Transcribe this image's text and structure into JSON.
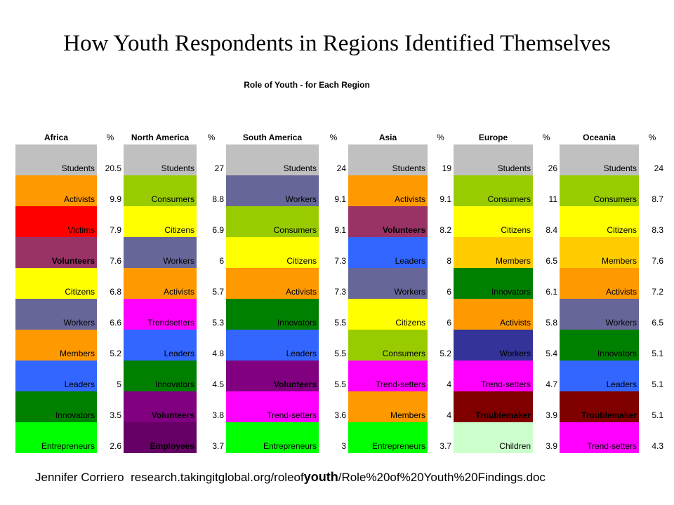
{
  "title": "How Youth Respondents in Regions Identified Themselves",
  "subtitle": "Role of Youth - for Each Region",
  "footer": {
    "author": "Jennifer Corriero",
    "url_pre": "research.takingitglobal.org/roleof",
    "url_bold": "youth",
    "url_post": "/Role%20of%20Youth%20Findings.doc"
  },
  "colors": {
    "Students": "#c0c0c0",
    "Activists": "#ff9900",
    "Victims": "#ff0000",
    "Volunteers": "#993366",
    "Volunteers_alt": "#800080",
    "Citizens": "#ffff00",
    "Workers": "#666699",
    "Workers_dark": "#333399",
    "Members": "#ff9900",
    "Members_alt": "#ffcc00",
    "Leaders": "#3366ff",
    "Innovators": "#008000",
    "Entrepreneurs": "#00ff00",
    "Consumers": "#99cc00",
    "Trendsetters": "#ff00ff",
    "Employees": "#660066",
    "Troublemaker": "#800000",
    "Children": "#ccffcc"
  },
  "chart_data": {
    "type": "table",
    "title": "How Youth Respondents in Regions Identified Themselves",
    "subtitle": "Role of Youth - for Each Region",
    "regions": [
      {
        "name": "Africa",
        "pct_label": "%",
        "rows": [
          {
            "role": "Students",
            "value": "20.5",
            "color": "#c0c0c0",
            "bold": false
          },
          {
            "role": "Activists",
            "value": "9.9",
            "color": "#ff9900",
            "bold": false
          },
          {
            "role": "Victims",
            "value": "7.9",
            "color": "#ff0000",
            "bold": false
          },
          {
            "role": "Volunteers",
            "value": "7.6",
            "color": "#993366",
            "bold": true
          },
          {
            "role": "Citizens",
            "value": "6.8",
            "color": "#ffff00",
            "bold": false
          },
          {
            "role": "Workers",
            "value": "6.6",
            "color": "#666699",
            "bold": false
          },
          {
            "role": "Members",
            "value": "5.2",
            "color": "#ff9900",
            "bold": false
          },
          {
            "role": "Leaders",
            "value": "5",
            "color": "#3366ff",
            "bold": false
          },
          {
            "role": "Innovators",
            "value": "3.5",
            "color": "#008000",
            "bold": false
          },
          {
            "role": "Entrepreneurs",
            "value": "2.6",
            "color": "#00ff00",
            "bold": false
          }
        ]
      },
      {
        "name": "North America",
        "pct_label": "%",
        "rows": [
          {
            "role": "Students",
            "value": "27",
            "color": "#c0c0c0",
            "bold": false
          },
          {
            "role": "Consumers",
            "value": "8.8",
            "color": "#99cc00",
            "bold": false
          },
          {
            "role": "Citizens",
            "value": "6.9",
            "color": "#ffff00",
            "bold": false
          },
          {
            "role": "Workers",
            "value": "6",
            "color": "#666699",
            "bold": false
          },
          {
            "role": "Activists",
            "value": "5.7",
            "color": "#ff9900",
            "bold": false
          },
          {
            "role": "Trendsetters",
            "value": "5.3",
            "color": "#ff00ff",
            "bold": false
          },
          {
            "role": "Leaders",
            "value": "4.8",
            "color": "#3366ff",
            "bold": false
          },
          {
            "role": "Innovators",
            "value": "4.5",
            "color": "#008000",
            "bold": false
          },
          {
            "role": "Volunteers",
            "value": "3.8",
            "color": "#800080",
            "bold": true
          },
          {
            "role": "Employees",
            "value": "3.7",
            "color": "#660066",
            "bold": true
          }
        ]
      },
      {
        "name": "South America",
        "pct_label": "%",
        "rows": [
          {
            "role": "Students",
            "value": "24",
            "color": "#c0c0c0",
            "bold": false
          },
          {
            "role": "Workers",
            "value": "9.1",
            "color": "#666699",
            "bold": false
          },
          {
            "role": "Consumers",
            "value": "9.1",
            "color": "#99cc00",
            "bold": false
          },
          {
            "role": "Citizens",
            "value": "7.3",
            "color": "#ffff00",
            "bold": false
          },
          {
            "role": "Activists",
            "value": "7.3",
            "color": "#ff9900",
            "bold": false
          },
          {
            "role": "Innovators",
            "value": "5.5",
            "color": "#008000",
            "bold": false
          },
          {
            "role": "Leaders",
            "value": "5.5",
            "color": "#3366ff",
            "bold": false
          },
          {
            "role": "Volunteers",
            "value": "5.5",
            "color": "#800080",
            "bold": true
          },
          {
            "role": "Trend-setters",
            "value": "3.6",
            "color": "#ff00ff",
            "bold": false
          },
          {
            "role": "Entrepreneurs",
            "value": "3",
            "color": "#00ff00",
            "bold": false
          }
        ]
      },
      {
        "name": "Asia",
        "pct_label": "%",
        "rows": [
          {
            "role": "Students",
            "value": "19",
            "color": "#c0c0c0",
            "bold": false
          },
          {
            "role": "Activists",
            "value": "9.1",
            "color": "#ff9900",
            "bold": false
          },
          {
            "role": "Volunteers",
            "value": "8.2",
            "color": "#993366",
            "bold": true
          },
          {
            "role": "Leaders",
            "value": "8",
            "color": "#3366ff",
            "bold": false
          },
          {
            "role": "Workers",
            "value": "6",
            "color": "#666699",
            "bold": false
          },
          {
            "role": "Citizens",
            "value": "6",
            "color": "#ffff00",
            "bold": false
          },
          {
            "role": "Consumers",
            "value": "5.2",
            "color": "#99cc00",
            "bold": false
          },
          {
            "role": "Trend-setters",
            "value": "4",
            "color": "#ff00ff",
            "bold": false
          },
          {
            "role": "Members",
            "value": "4",
            "color": "#ff9900",
            "bold": false
          },
          {
            "role": "Entrepreneurs",
            "value": "3.7",
            "color": "#00ff00",
            "bold": false
          }
        ]
      },
      {
        "name": "Europe",
        "pct_label": "%",
        "rows": [
          {
            "role": "Students",
            "value": "26",
            "color": "#c0c0c0",
            "bold": false
          },
          {
            "role": "Consumers",
            "value": "11",
            "color": "#99cc00",
            "bold": false
          },
          {
            "role": "Citizens",
            "value": "8.4",
            "color": "#ffff00",
            "bold": false
          },
          {
            "role": "Members",
            "value": "6.5",
            "color": "#ffcc00",
            "bold": false
          },
          {
            "role": "Innovators",
            "value": "6.1",
            "color": "#008000",
            "bold": false
          },
          {
            "role": "Activists",
            "value": "5.8",
            "color": "#ff9900",
            "bold": false
          },
          {
            "role": "Workers",
            "value": "5.4",
            "color": "#333399",
            "bold": false
          },
          {
            "role": "Trend-setters",
            "value": "4.7",
            "color": "#ff00ff",
            "bold": false
          },
          {
            "role": "Troublemaker",
            "value": "3.9",
            "color": "#800000",
            "bold": true
          },
          {
            "role": "Children",
            "value": "3.9",
            "color": "#ccffcc",
            "bold": false
          }
        ]
      },
      {
        "name": "Oceania",
        "pct_label": "%",
        "rows": [
          {
            "role": "Students",
            "value": "24",
            "color": "#c0c0c0",
            "bold": false
          },
          {
            "role": "Consumers",
            "value": "8.7",
            "color": "#99cc00",
            "bold": false
          },
          {
            "role": "Citizens",
            "value": "8.3",
            "color": "#ffff00",
            "bold": false
          },
          {
            "role": "Members",
            "value": "7.6",
            "color": "#ffcc00",
            "bold": false
          },
          {
            "role": "Activists",
            "value": "7.2",
            "color": "#ff9900",
            "bold": false
          },
          {
            "role": "Workers",
            "value": "6.5",
            "color": "#666699",
            "bold": false
          },
          {
            "role": "Innovators",
            "value": "5.1",
            "color": "#008000",
            "bold": false
          },
          {
            "role": "Leaders",
            "value": "5.1",
            "color": "#3366ff",
            "bold": false
          },
          {
            "role": "Troublemaker",
            "value": "5.1",
            "color": "#800000",
            "bold": true
          },
          {
            "role": "Trend-setters",
            "value": "4.3",
            "color": "#ff00ff",
            "bold": false
          }
        ]
      }
    ]
  }
}
